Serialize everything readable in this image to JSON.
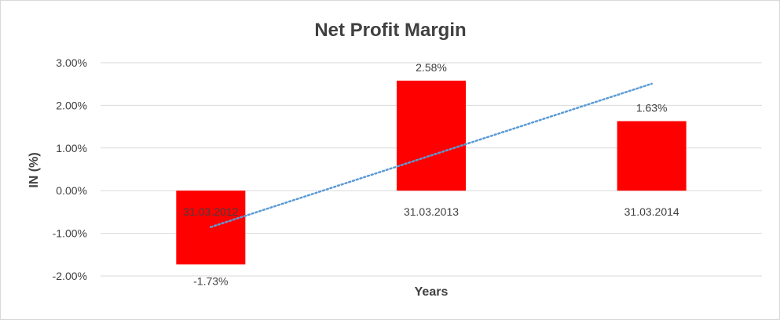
{
  "chart_data": {
    "type": "bar",
    "title": "Net Profit Margin",
    "xlabel": "Years",
    "ylabel": "IN (%)",
    "categories": [
      "31.03.2012",
      "31.03.2013",
      "31.03.2014"
    ],
    "series": [
      {
        "values": [
          -1.73,
          2.58,
          1.63
        ],
        "labels": [
          "-1.73%",
          "2.58%",
          "1.63%"
        ],
        "color": "#ff0000"
      }
    ],
    "trendline": {
      "style": "dotted",
      "color": "#5b9bd5",
      "type": "linear"
    },
    "ylim": [
      -2,
      3
    ],
    "yticks": [
      3,
      2,
      1,
      0,
      -1,
      -2
    ],
    "ytick_labels": [
      "3.00%",
      "2.00%",
      "1.00%",
      "0.00%",
      "-1.00%",
      "-2.00%"
    ],
    "grid": true,
    "legend": "none"
  }
}
